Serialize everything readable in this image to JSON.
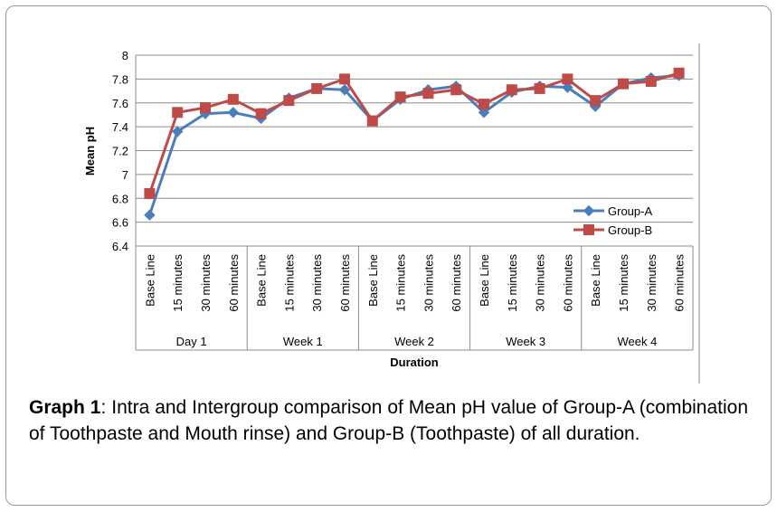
{
  "chart_data": {
    "type": "line",
    "ylabel": "Mean pH",
    "xlabel": "Duration",
    "ylim": [
      6.4,
      8.0
    ],
    "yticks": [
      "6.4",
      "6.6",
      "6.8",
      "7",
      "7.2",
      "7.4",
      "7.6",
      "7.8",
      "8"
    ],
    "grid": true,
    "legend_position": "bottom-right",
    "groups": [
      {
        "label": "Day 1",
        "categories": [
          "Base Line",
          "15 minutes",
          "30 minutes",
          "60 minutes"
        ]
      },
      {
        "label": "Week 1",
        "categories": [
          "Base Line",
          "15 minutes",
          "30 minutes",
          "60 minutes"
        ]
      },
      {
        "label": "Week 2",
        "categories": [
          "Base Line",
          "15 minutes",
          "30 minutes",
          "60 minutes"
        ]
      },
      {
        "label": "Week 3",
        "categories": [
          "Base Line",
          "15 minutes",
          "30 minutes",
          "60 minutes"
        ]
      },
      {
        "label": "Week 4",
        "categories": [
          "Base Line",
          "15 minutes",
          "30 minutes",
          "60 minutes"
        ]
      }
    ],
    "series": [
      {
        "name": "Group-A",
        "color": "#4a7ebb",
        "marker": "diamond",
        "values": [
          6.66,
          7.36,
          7.51,
          7.52,
          7.47,
          7.64,
          7.72,
          7.71,
          7.45,
          7.63,
          7.71,
          7.74,
          7.52,
          7.69,
          7.74,
          7.73,
          7.57,
          7.76,
          7.81,
          7.83
        ]
      },
      {
        "name": "Group-B",
        "color": "#be4b48",
        "marker": "square",
        "values": [
          6.84,
          7.52,
          7.56,
          7.63,
          7.51,
          7.62,
          7.72,
          7.8,
          7.45,
          7.65,
          7.68,
          7.71,
          7.59,
          7.71,
          7.72,
          7.8,
          7.62,
          7.76,
          7.78,
          7.85
        ]
      }
    ]
  },
  "caption": {
    "label": "Graph 1",
    "text": ": Intra and Intergroup comparison of Mean pH value of Group-A (combination of Toothpaste and Mouth rinse) and Group-B (Toothpaste) of all duration."
  }
}
